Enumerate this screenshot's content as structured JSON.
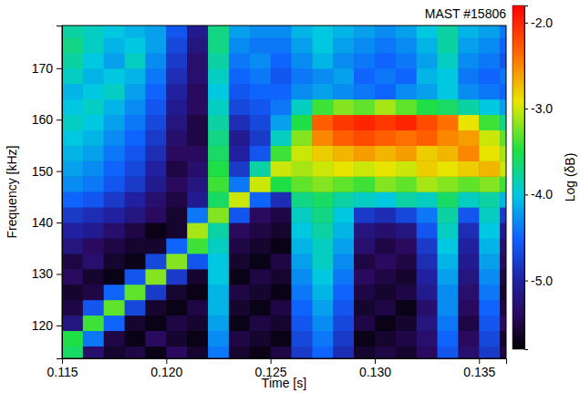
{
  "chart_data": {
    "type": "heatmap",
    "title": "MAST #15806",
    "xlabel": "Time [s]",
    "ylabel": "Frequency [kHz]",
    "xlim": [
      0.115,
      0.1363
    ],
    "ylim": [
      113.6,
      178.3
    ],
    "xticks": [
      0.115,
      {
        "value": 0.12,
        "label": "0.120"
      },
      0.125,
      {
        "value": 0.13,
        "label": "0.130"
      },
      0.135
    ],
    "yticks": [
      120,
      130,
      140,
      150,
      160,
      170
    ],
    "x": [
      0.1155,
      0.1165,
      0.1175,
      0.1185,
      0.1195,
      0.1205,
      0.1215,
      0.1225,
      0.1235,
      0.1245,
      0.1255,
      0.1265,
      0.1275,
      0.1285,
      0.1295,
      0.1305,
      0.1315,
      0.1325,
      0.1335,
      0.1345,
      0.1355,
      0.1365
    ],
    "y": [
      114.5,
      117.5,
      120.5,
      123.5,
      126.5,
      129.5,
      132.5,
      135.5,
      138.5,
      141.5,
      144.5,
      147.5,
      150.5,
      153.5,
      156.5,
      159.5,
      162.5,
      165.5,
      168.5,
      171.5,
      174.5,
      177.5
    ],
    "z": [
      [
        -3.6,
        -5.3,
        -5.6,
        -5.5,
        -5.7,
        -5.4,
        -5.6,
        -4.4,
        -5.6,
        -5.7,
        -5.5,
        -4.8,
        -4.5,
        -4.9,
        -5.6,
        -5.5,
        -5.6,
        -5.4,
        -4.6,
        -5.3,
        -4.8,
        -5.5
      ],
      [
        -3.5,
        -4.4,
        -5.5,
        -5.7,
        -5.4,
        -5.6,
        -5.7,
        -4.3,
        -5.5,
        -5.6,
        -5.7,
        -4.7,
        -4.4,
        -4.8,
        -5.7,
        -5.6,
        -5.5,
        -5.3,
        -4.5,
        -5.4,
        -4.7,
        -5.6
      ],
      [
        -5.2,
        -3.4,
        -4.5,
        -5.6,
        -5.7,
        -5.5,
        -5.6,
        -4.2,
        -5.7,
        -5.5,
        -5.6,
        -4.6,
        -4.3,
        -4.7,
        -5.5,
        -5.7,
        -5.6,
        -5.2,
        -4.4,
        -5.5,
        -4.6,
        -5.4
      ],
      [
        -5.5,
        -4.6,
        -3.3,
        -4.7,
        -5.6,
        -5.7,
        -5.5,
        -4.1,
        -5.6,
        -5.7,
        -5.5,
        -4.5,
        -4.2,
        -4.6,
        -5.6,
        -5.5,
        -5.7,
        -5.3,
        -4.3,
        -5.4,
        -4.5,
        -5.5
      ],
      [
        -5.6,
        -5.5,
        -4.5,
        -3.3,
        -4.8,
        -5.6,
        -5.7,
        -4.1,
        -5.5,
        -5.6,
        -5.7,
        -4.4,
        -4.1,
        -4.5,
        -5.5,
        -5.6,
        -5.5,
        -5.1,
        -4.3,
        -5.3,
        -4.4,
        -5.6
      ],
      [
        -5.4,
        -5.6,
        -5.7,
        -4.6,
        -3.2,
        -4.8,
        -5.6,
        -4.0,
        -5.7,
        -5.5,
        -5.6,
        -4.3,
        -4.0,
        -4.4,
        -5.4,
        -5.5,
        -5.6,
        -5.0,
        -4.2,
        -5.2,
        -4.3,
        -5.5
      ],
      [
        -5.5,
        -5.3,
        -5.6,
        -5.7,
        -4.7,
        -3.2,
        -4.6,
        -4.0,
        -5.6,
        -5.7,
        -5.5,
        -4.2,
        -3.9,
        -4.3,
        -5.5,
        -5.4,
        -5.5,
        -4.9,
        -4.1,
        -5.1,
        -4.2,
        -5.4
      ],
      [
        -5.2,
        -5.4,
        -5.5,
        -5.6,
        -5.6,
        -4.5,
        -3.4,
        -3.9,
        -5.5,
        -5.6,
        -5.7,
        -4.1,
        -3.9,
        -4.2,
        -5.3,
        -5.5,
        -5.4,
        -4.8,
        -4.0,
        -5.0,
        -4.1,
        -5.3
      ],
      [
        -5.0,
        -5.1,
        -5.3,
        -5.5,
        -5.7,
        -5.6,
        -3.1,
        -3.8,
        -5.4,
        -5.5,
        -5.6,
        -4.0,
        -3.8,
        -4.1,
        -5.2,
        -5.3,
        -5.2,
        -4.6,
        -3.9,
        -4.9,
        -4.0,
        -5.1
      ],
      [
        -4.8,
        -4.9,
        -5.0,
        -5.2,
        -5.4,
        -5.6,
        -4.4,
        -3.2,
        -4.6,
        -5.4,
        -5.5,
        -3.9,
        -3.7,
        -4.0,
        -4.8,
        -4.9,
        -4.7,
        -4.4,
        -3.8,
        -4.6,
        -3.9,
        -4.8
      ],
      [
        -4.5,
        -4.6,
        -4.8,
        -5.0,
        -5.3,
        -5.5,
        -5.1,
        -3.6,
        -3.0,
        -4.5,
        -4.9,
        -3.7,
        -3.6,
        -3.8,
        -3.9,
        -4.0,
        -3.8,
        -3.9,
        -3.6,
        -3.9,
        -3.8,
        -4.1
      ],
      [
        -4.3,
        -4.4,
        -4.6,
        -4.8,
        -5.1,
        -5.4,
        -5.2,
        -3.4,
        -4.4,
        -3.0,
        -3.5,
        -3.3,
        -3.2,
        -3.3,
        -3.4,
        -3.2,
        -3.3,
        -3.1,
        -3.2,
        -3.3,
        -3.2,
        -3.4
      ],
      [
        -4.2,
        -4.3,
        -4.5,
        -4.7,
        -5.0,
        -5.5,
        -5.3,
        -3.5,
        -4.8,
        -3.8,
        -3.0,
        -3.1,
        -3.0,
        -2.9,
        -3.0,
        -2.9,
        -3.0,
        -2.8,
        -2.9,
        -2.8,
        -2.7,
        -3.0
      ],
      [
        -4.1,
        -4.2,
        -4.4,
        -4.6,
        -4.9,
        -5.4,
        -5.4,
        -3.6,
        -5.0,
        -4.6,
        -3.4,
        -3.0,
        -2.8,
        -2.7,
        -2.6,
        -2.7,
        -2.6,
        -2.8,
        -2.7,
        -2.5,
        -2.9,
        -3.1
      ],
      [
        -4.0,
        -4.1,
        -4.3,
        -4.5,
        -4.8,
        -5.3,
        -5.5,
        -3.7,
        -5.1,
        -4.8,
        -3.9,
        -3.2,
        -2.5,
        -2.3,
        -2.2,
        -2.3,
        -2.4,
        -2.3,
        -2.5,
        -2.6,
        -3.0,
        -3.3
      ],
      [
        -3.9,
        -4.0,
        -4.2,
        -4.4,
        -4.7,
        -5.2,
        -5.5,
        -3.8,
        -4.9,
        -4.7,
        -4.2,
        -3.5,
        -2.3,
        -2.1,
        -2.0,
        -2.1,
        -2.0,
        -2.2,
        -2.4,
        -2.9,
        -3.4,
        -3.7
      ],
      [
        -4.0,
        -3.9,
        -4.1,
        -4.3,
        -4.6,
        -5.1,
        -5.4,
        -3.9,
        -4.7,
        -4.6,
        -4.4,
        -3.9,
        -3.4,
        -3.2,
        -3.3,
        -3.1,
        -3.3,
        -3.5,
        -3.6,
        -3.8,
        -4.0,
        -4.2
      ],
      [
        -4.1,
        -4.0,
        -3.9,
        -4.2,
        -4.5,
        -5.0,
        -5.4,
        -4.0,
        -4.6,
        -4.5,
        -4.5,
        -4.3,
        -4.2,
        -4.3,
        -4.4,
        -4.5,
        -4.3,
        -4.2,
        -4.0,
        -4.3,
        -4.4,
        -4.5
      ],
      [
        -3.9,
        -4.1,
        -4.0,
        -4.1,
        -4.4,
        -4.9,
        -5.3,
        -3.9,
        -4.5,
        -4.4,
        -4.6,
        -4.4,
        -4.3,
        -4.2,
        -4.5,
        -4.4,
        -4.5,
        -4.1,
        -4.0,
        -4.4,
        -4.5,
        -4.4
      ],
      [
        -3.8,
        -4.0,
        -4.2,
        -3.9,
        -4.3,
        -4.8,
        -5.3,
        -3.8,
        -4.4,
        -4.3,
        -4.5,
        -4.3,
        -4.1,
        -4.3,
        -4.4,
        -4.5,
        -4.4,
        -4.2,
        -3.9,
        -4.3,
        -4.4,
        -4.6
      ],
      [
        -3.7,
        -3.9,
        -4.1,
        -4.0,
        -4.2,
        -4.7,
        -5.2,
        -3.7,
        -4.3,
        -4.4,
        -4.4,
        -4.2,
        -4.0,
        -4.2,
        -4.3,
        -4.4,
        -4.3,
        -4.1,
        -3.8,
        -4.2,
        -4.3,
        -4.5
      ],
      [
        -3.8,
        -3.9,
        -4.0,
        -4.1,
        -4.2,
        -4.6,
        -5.1,
        -3.7,
        -4.2,
        -4.3,
        -4.3,
        -4.1,
        -4.0,
        -4.1,
        -4.2,
        -4.3,
        -4.2,
        -4.0,
        -3.8,
        -4.1,
        -4.2,
        -4.4
      ]
    ],
    "zlim": [
      -5.8,
      -1.8
    ],
    "zticks": [
      {
        "value": -2,
        "label": "-2.0"
      },
      {
        "value": -3,
        "label": "-3.0"
      },
      {
        "value": -4,
        "label": "-4.0"
      },
      {
        "value": -5,
        "label": "-5.0"
      }
    ],
    "zlabel": "Log (δB)"
  }
}
